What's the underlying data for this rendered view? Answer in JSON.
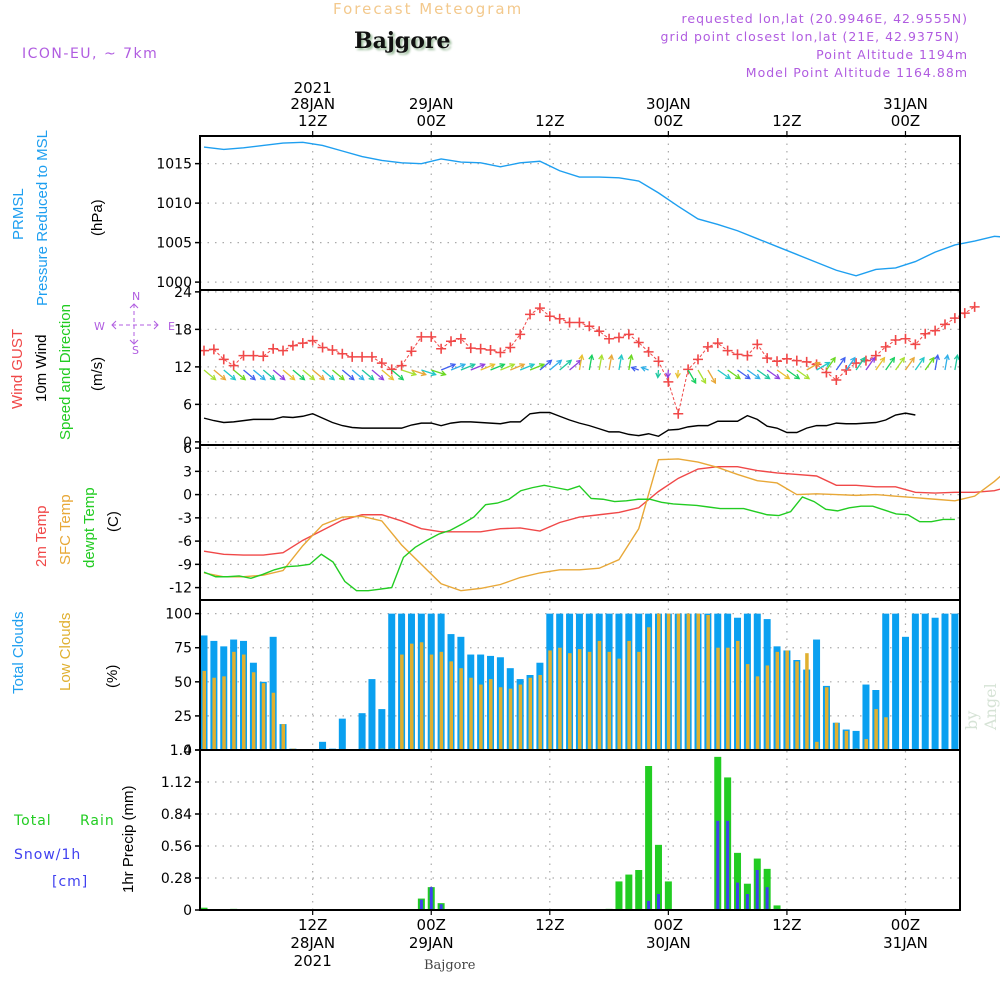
{
  "header": {
    "title_top": "Forecast Meteogram",
    "station": "Bajgore",
    "model": "ICON-EU, ~ 7km",
    "requested": "requested lon,lat (20.9946E, 42.9555N)",
    "grid_point": "grid point closest lon,lat (21E, 42.9375N)",
    "point_altitude": "Point Altitude 1194m",
    "model_altitude": "Model Point Altitude 1164.88m",
    "watermark": "by Angel",
    "footer_station": "Bajgore"
  },
  "panel_labels": {
    "pressure": {
      "l1": "PRMSL",
      "l2": "Pressure Reduced to MSL",
      "unit": "(hPa)"
    },
    "wind": {
      "l1a": "Wind ",
      "l1b": "GUST",
      "l2": "10m Wind",
      "l3": "Speed and Direction",
      "unit": "(m/s)",
      "compass": {
        "n": "N",
        "s": "S",
        "w": "W",
        "e": "E"
      }
    },
    "temp": {
      "l1": "2m Temp",
      "l2": "SFC Temp",
      "l3": "dewpt Temp",
      "unit": "(C)"
    },
    "clouds": {
      "l1": "Total Clouds",
      "l2": "Low Clouds",
      "unit": "(%)"
    },
    "precip": {
      "total": "Total",
      "rain": "Rain",
      "snow": "Snow/1h",
      "snow_unit": "[cm]",
      "unit": "1hr Precip (mm)"
    }
  },
  "colors": {
    "pressure": "#1e9ff0",
    "gust": "#f04848",
    "wind10m": "#000000",
    "t2m": "#f04848",
    "tsfc": "#e8a838",
    "dewpt": "#22cc22",
    "total_clouds": "#0aa0f0",
    "low_clouds": "#e0b030",
    "total_precip": "#22cc22",
    "snow": "#4040f0",
    "purple": "#b05ce0"
  },
  "chart_data": [
    {
      "type": "line",
      "panel": "pressure",
      "title": "PRMSL Pressure Reduced to MSL",
      "ylabel": "(hPa)",
      "ylim": [
        999,
        1018.5
      ],
      "yticks": [
        1000,
        1005,
        1010,
        1015
      ],
      "x_hours_from": "28JAN2021 01Z",
      "x_step_hours": 2,
      "series": [
        {
          "name": "PRMSL",
          "values": [
            1017.1,
            1016.8,
            1017.0,
            1017.3,
            1017.6,
            1017.7,
            1017.3,
            1016.6,
            1015.9,
            1015.4,
            1015.1,
            1015.0,
            1015.6,
            1015.2,
            1015.1,
            1014.6,
            1015.1,
            1015.3,
            1014.1,
            1013.3,
            1013.3,
            1013.2,
            1012.8,
            1011.3,
            1009.6,
            1008.0,
            1007.3,
            1006.5,
            1005.5,
            1004.5,
            1003.5,
            1002.5,
            1001.5,
            1000.8,
            1001.6,
            1001.8,
            1002.6,
            1003.8,
            1004.7,
            1005.2,
            1005.8,
            1005.6,
            1005.0,
            1005.3,
            1006.1,
            1006.4,
            1005.7,
            1005.5,
            1005.1,
            1004.6,
            1003.8,
            1002.5,
            1001.5,
            1000.3
          ]
        }
      ]
    },
    {
      "type": "line",
      "panel": "wind",
      "title": "Wind GUST / 10m Wind Speed and Direction",
      "ylabel": "(m/s)",
      "ylim": [
        -0.5,
        24.3
      ],
      "yticks": [
        0,
        6,
        12,
        18,
        24
      ],
      "x_hours_from": "28JAN2021 01Z",
      "x_step_hours": 1,
      "series": [
        {
          "name": "Wind GUST",
          "marker": "+",
          "values": [
            14.6,
            14.8,
            13.2,
            12.2,
            13.8,
            13.8,
            13.7,
            14.9,
            14.6,
            15.4,
            15.8,
            16.2,
            15.1,
            14.7,
            14.1,
            13.6,
            13.6,
            13.6,
            12.6,
            11.6,
            12.2,
            14.5,
            16.8,
            16.8,
            14.9,
            16.1,
            16.5,
            15.0,
            14.9,
            14.7,
            14.3,
            15.1,
            17.2,
            20.4,
            21.4,
            20.1,
            19.7,
            19.1,
            19.1,
            18.5,
            17.7,
            16.5,
            16.7,
            17.2,
            15.9,
            14.4,
            12.9,
            9.6,
            4.5,
            11.6,
            13.2,
            15.2,
            15.8,
            14.6,
            14.0,
            13.8,
            15.6,
            13.4,
            12.9,
            13.3,
            13.0,
            12.8,
            12.4,
            11.1,
            9.9,
            11.5,
            12.6,
            13.0,
            13.8,
            15.2,
            16.3,
            16.5,
            15.6,
            17.3,
            17.8,
            18.8,
            19.8,
            20.6,
            21.6
          ]
        },
        {
          "name": "10m Wind",
          "values": [
            3.8,
            3.4,
            3.1,
            3.2,
            3.4,
            3.6,
            3.6,
            3.6,
            4.0,
            3.9,
            4.1,
            4.5,
            3.8,
            3.1,
            2.6,
            2.3,
            2.2,
            2.2,
            2.2,
            2.2,
            2.2,
            2.7,
            3.0,
            3.0,
            2.6,
            3.0,
            3.2,
            3.2,
            3.1,
            3.0,
            2.9,
            3.2,
            3.2,
            4.5,
            4.7,
            4.7,
            4.1,
            3.5,
            3.0,
            2.6,
            2.1,
            1.6,
            1.6,
            1.2,
            1.0,
            1.3,
            0.9,
            1.9,
            2.0,
            2.4,
            2.6,
            2.6,
            3.3,
            3.3,
            3.3,
            4.2,
            3.6,
            2.5,
            2.2,
            1.5,
            1.5,
            2.2,
            2.6,
            2.6,
            3.0,
            2.9,
            2.9,
            3.0,
            3.1,
            3.5,
            4.3,
            4.6,
            4.3
          ]
        }
      ],
      "wind_direction_arrows": "per-hour arrows colored by speed, NW flow early (pointing SE), turning W/SW, S near 30JAN 00Z, then NW, ending S"
    },
    {
      "type": "line",
      "panel": "temperature",
      "title": "2m Temp / SFC Temp / dewpt Temp",
      "ylabel": "(C)",
      "ylim": [
        -13.6,
        6.4
      ],
      "yticks": [
        -12,
        -9,
        -6,
        -3,
        0,
        3,
        6
      ],
      "x_hours_from": "28JAN2021 01Z",
      "x_step_hours": 2,
      "series": [
        {
          "name": "2m Temp",
          "values": [
            -7.3,
            -7.7,
            -7.8,
            -7.8,
            -7.5,
            -5.9,
            -4.6,
            -3.3,
            -2.6,
            -2.6,
            -3.4,
            -4.4,
            -4.8,
            -4.8,
            -4.8,
            -4.4,
            -4.3,
            -4.7,
            -3.6,
            -2.9,
            -2.6,
            -2.3,
            -1.7,
            0.4,
            2.1,
            3.3,
            3.6,
            3.6,
            3.1,
            2.8,
            2.6,
            2.4,
            1.2,
            1.2,
            1.0,
            1.0,
            0.3,
            0.2,
            0.3,
            0.3,
            0.5,
            1.2,
            2.6,
            3.6,
            4.4,
            4.6,
            3.6,
            2.0,
            1.7,
            1.3,
            1.6,
            1.8,
            1.6,
            1.5,
            1.7,
            2.1,
            2.2,
            2.9
          ]
        },
        {
          "name": "SFC Temp",
          "values": [
            -10.1,
            -10.6,
            -10.6,
            -10.4,
            -9.8,
            -6.6,
            -3.9,
            -2.9,
            -2.8,
            -3.4,
            -6.5,
            -9.0,
            -11.5,
            -12.4,
            -12.1,
            -11.6,
            -10.7,
            -10.1,
            -9.7,
            -9.7,
            -9.5,
            -8.4,
            -4.4,
            4.5,
            4.6,
            4.2,
            3.5,
            2.6,
            1.8,
            1.5,
            0.0,
            0.1,
            0.0,
            -0.1,
            0.0,
            -0.2,
            -0.4,
            -0.6,
            -0.8,
            -0.2,
            1.7,
            3.9,
            3.7,
            3.8,
            3.3,
            1.2,
            -0.6,
            -1.8,
            -2.9,
            -2.8,
            -2.3,
            -2.0,
            -2.3,
            -2.9,
            -2.7,
            -1.4,
            -0.9,
            -0.3
          ]
        },
        {
          "name": "dewpt Temp",
          "values": [
            -10.0,
            -10.6,
            -10.6,
            -10.5,
            -10.8,
            -10.3,
            -9.7,
            -9.3,
            -9.2,
            -9.0,
            -7.7,
            -8.7,
            -11.2,
            -12.4,
            -12.4,
            -12.2,
            -12.0,
            -8.1,
            -6.8,
            -5.9,
            -5.1,
            -4.6,
            -3.8,
            -2.9,
            -1.3,
            -1.1,
            -0.6,
            0.5,
            0.9,
            1.2,
            0.9,
            0.6,
            1.1,
            -0.5,
            -0.6,
            -0.9,
            -0.8,
            -0.6,
            -0.6,
            -1.0,
            -1.2,
            -1.3,
            -1.4,
            -1.6,
            -1.8,
            -1.8,
            -1.8,
            -2.2,
            -2.6,
            -2.7,
            -2.2,
            -0.3,
            -0.9,
            -1.9,
            -2.1,
            -1.7,
            -1.5,
            -1.5,
            -2.0,
            -2.5,
            -2.6,
            -3.5,
            -3.5,
            -3.2,
            -3.2
          ]
        }
      ]
    },
    {
      "type": "bar",
      "panel": "clouds",
      "title": "Total Clouds / Low Clouds",
      "ylabel": "(%)",
      "ylim": [
        0,
        110
      ],
      "yticks": [
        0,
        25,
        50,
        75,
        100
      ],
      "x_hours_from": "28JAN2021 01Z",
      "x_step_hours": 1,
      "series": [
        {
          "name": "Total Clouds",
          "values": [
            84,
            80,
            76,
            81,
            80,
            64,
            50,
            83,
            19,
            1,
            0,
            0,
            6,
            1,
            23,
            0,
            27,
            52,
            30,
            100,
            100,
            100,
            100,
            100,
            100,
            85,
            83,
            70,
            70,
            69,
            68,
            60,
            52,
            55,
            64,
            100,
            100,
            100,
            100,
            100,
            100,
            100,
            100,
            100,
            100,
            100,
            100,
            100,
            100,
            100,
            100,
            100,
            100,
            100,
            97,
            100,
            100,
            96,
            76,
            73,
            66,
            59,
            81,
            47,
            20,
            15,
            14,
            48,
            44,
            100,
            100,
            83,
            100,
            100,
            97,
            100,
            100,
            100,
            100,
            100
          ]
        },
        {
          "name": "Low Clouds",
          "values": [
            58,
            53,
            54,
            72,
            70,
            57,
            49,
            42,
            19,
            1,
            0,
            0,
            0,
            0,
            0,
            0,
            1,
            0,
            1,
            1,
            70,
            78,
            79,
            70,
            72,
            65,
            60,
            53,
            48,
            52,
            46,
            45,
            48,
            53,
            55,
            73,
            75,
            71,
            74,
            72,
            80,
            72,
            67,
            80,
            72,
            90,
            100,
            100,
            100,
            100,
            100,
            99,
            75,
            75,
            80,
            63,
            54,
            62,
            72,
            73,
            65,
            71,
            6,
            46,
            20,
            14,
            1,
            8,
            30,
            24,
            0,
            0,
            0,
            0,
            0,
            0,
            0,
            1,
            32,
            92
          ]
        }
      ]
    },
    {
      "type": "bar",
      "panel": "precip",
      "title": "Total Rain / Snow per 1h",
      "ylabel": "1hr Precip (mm)",
      "ylim": [
        0,
        1.4
      ],
      "yticks": [
        0,
        0.28,
        0.56,
        0.84,
        1.12,
        1.4
      ],
      "x_hours_from": "28JAN2021 01Z",
      "x_step_hours": 1,
      "series": [
        {
          "name": "Total",
          "values": [
            0.02,
            0,
            0,
            0.01,
            0,
            0,
            0,
            0,
            0,
            0,
            0,
            0,
            0,
            0,
            0,
            0,
            0,
            0,
            0,
            0,
            0,
            0,
            0.1,
            0.2,
            0.06,
            0,
            0,
            0,
            0,
            0,
            0,
            0,
            0,
            0,
            0,
            0,
            0,
            0,
            0,
            0,
            0,
            0.01,
            0.25,
            0.31,
            0.35,
            1.26,
            0.57,
            0.25,
            0,
            0,
            0,
            0,
            1.34,
            1.16,
            0.5,
            0.23,
            0.45,
            0.36,
            0.04,
            0,
            0,
            0,
            0,
            0,
            0,
            0,
            0,
            0,
            0,
            0,
            0,
            0,
            0,
            0,
            0,
            0,
            0
          ]
        },
        {
          "name": "Snow/1h",
          "values": [
            0.005,
            0,
            0,
            0.005,
            0,
            0,
            0,
            0,
            0,
            0,
            0,
            0,
            0,
            0,
            0,
            0,
            0,
            0,
            0,
            0,
            0,
            0,
            0.09,
            0.2,
            0.05,
            0,
            0,
            0,
            0,
            0,
            0,
            0,
            0,
            0,
            0,
            0,
            0,
            0,
            0,
            0,
            0,
            0,
            0,
            0,
            0,
            0.08,
            0.14,
            0,
            0,
            0,
            0,
            0,
            0.78,
            0.78,
            0.24,
            0.14,
            0.35,
            0.2,
            0.01,
            0,
            0,
            0,
            0,
            0,
            0,
            0,
            0,
            0,
            0,
            0,
            0,
            0,
            0,
            0,
            0,
            0,
            0
          ]
        }
      ]
    }
  ],
  "x_axis": {
    "top_ticks": [
      {
        "l1": "2021",
        "l2": "28JAN",
        "l3": "12Z"
      },
      {
        "l1": "",
        "l2": "29JAN",
        "l3": "00Z"
      },
      {
        "l1": "",
        "l2": "",
        "l3": "12Z"
      },
      {
        "l1": "",
        "l2": "30JAN",
        "l3": "00Z"
      },
      {
        "l1": "",
        "l2": "",
        "l3": "12Z"
      },
      {
        "l1": "",
        "l2": "31JAN",
        "l3": "00Z"
      }
    ],
    "bottom_ticks": [
      {
        "l1": "12Z",
        "l2": "28JAN",
        "l3": "2021"
      },
      {
        "l1": "00Z",
        "l2": "29JAN",
        "l3": ""
      },
      {
        "l1": "12Z",
        "l2": "",
        "l3": ""
      },
      {
        "l1": "00Z",
        "l2": "30JAN",
        "l3": ""
      },
      {
        "l1": "12Z",
        "l2": "",
        "l3": ""
      },
      {
        "l1": "00Z",
        "l2": "31JAN",
        "l3": ""
      }
    ],
    "tick_hours": [
      11,
      23,
      35,
      47,
      59,
      71
    ]
  }
}
